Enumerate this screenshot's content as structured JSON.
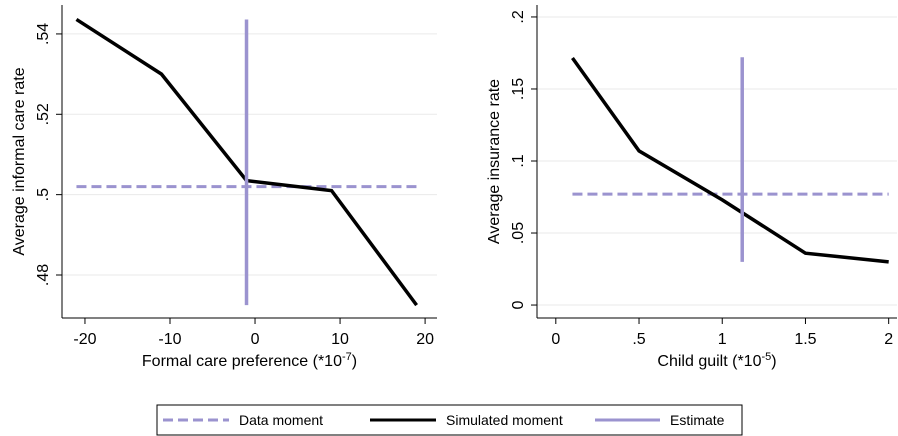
{
  "chart_data": [
    {
      "type": "line",
      "xlabel": {
        "text": "Formal care preference (*10",
        "superscript": "-7",
        "suffix": ")"
      },
      "ylabel": "Average informal care rate",
      "xlim": [
        -22.7,
        21.4
      ],
      "ylim": [
        0.4693,
        0.5472
      ],
      "xticks": [
        -20,
        -10,
        0,
        10,
        20
      ],
      "yticks": [
        {
          "value": 0.48,
          "label": ".48"
        },
        {
          "value": 0.5,
          "label": ".5"
        },
        {
          "value": 0.52,
          "label": ".52"
        },
        {
          "value": 0.54,
          "label": ".54"
        }
      ],
      "grid": true,
      "series": [
        {
          "name": "Data moment",
          "color": "#9b93cf",
          "style": "dashed",
          "x": [
            -21,
            19
          ],
          "values": [
            0.502,
            0.502
          ]
        },
        {
          "name": "Simulated moment",
          "color": "#000000",
          "style": "solid",
          "x": [
            -21,
            -11,
            -1,
            9,
            19
          ],
          "values": [
            0.5436,
            0.53,
            0.5035,
            0.501,
            0.4725
          ]
        },
        {
          "name": "Estimate",
          "color": "#9b93cf",
          "style": "solid",
          "x": [
            -1,
            -1
          ],
          "values": [
            0.4725,
            0.5436
          ]
        }
      ]
    },
    {
      "type": "line",
      "xlabel": {
        "text": "Child guilt (*10",
        "superscript": "-5",
        "suffix": ")"
      },
      "ylabel": "Average insurance rate",
      "xlim": [
        -0.113,
        2.05
      ],
      "ylim": [
        -0.009,
        0.2083
      ],
      "xticks": [
        0,
        {
          "value": 0.5,
          "label": ".5"
        },
        1,
        1.5,
        2
      ],
      "yticks": [
        0,
        {
          "value": 0.05,
          "label": ".05"
        },
        {
          "value": 0.1,
          "label": ".1"
        },
        {
          "value": 0.15,
          "label": ".15"
        },
        {
          "value": 0.2,
          "label": ".2"
        }
      ],
      "grid": true,
      "series": [
        {
          "color": "#9b93cf",
          "style": "dashed",
          "x": [
            0.1,
            2
          ],
          "values": [
            0.077,
            0.077
          ]
        },
        {
          "color": "#000000",
          "style": "solid",
          "x": [
            0.1,
            0.5,
            1,
            1.5,
            2
          ],
          "values": [
            0.1715,
            0.107,
            0.073,
            0.036,
            0.03
          ]
        },
        {
          "color": "#9b93cf",
          "style": "solid",
          "x": [
            1.12,
            1.12
          ],
          "values": [
            0.03,
            0.172
          ]
        }
      ]
    }
  ]
}
